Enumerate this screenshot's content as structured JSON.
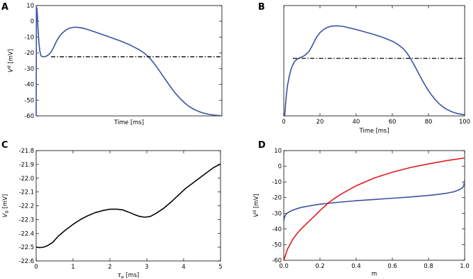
{
  "chart_data": [
    {
      "type": "line",
      "panel_label": "A",
      "xlabel": "Time [ms]",
      "ylabel": "V",
      "ylabel_sup": "d",
      "ylabel_unit": " [mV]",
      "xlim": [
        0,
        100
      ],
      "ylim": [
        -60,
        10
      ],
      "xticks": [],
      "xticklabels": [],
      "yticks": [
        10,
        0,
        -10,
        -20,
        -30,
        -40,
        -50,
        -60
      ],
      "yticklabels": [
        "10",
        "0",
        "-10",
        "-20",
        "-30",
        "-40",
        "-50",
        "-60"
      ],
      "series": [
        {
          "name": "Vd",
          "color": "#3a4fa0",
          "x": [
            0,
            0.15,
            0.4,
            0.7,
            1.0,
            1.5,
            2.0,
            2.5,
            3.0,
            4.0,
            5.0,
            6.0,
            7.0,
            8.0,
            9.0,
            10.0,
            11.0,
            12.0,
            13.0,
            14.0,
            16.0,
            18.0,
            20.0,
            22.0,
            24.0,
            26.0,
            28.0,
            30.0,
            32.0,
            35.0,
            40.0,
            45.0,
            50.0,
            55.0,
            58.0,
            60.0,
            62.0,
            64.0,
            66.0,
            68.0,
            70.0,
            72.0,
            74.0,
            76.0,
            78.0,
            80.0,
            82.0,
            84.0,
            86.0,
            88.0,
            90.0,
            93.0,
            96.0,
            100.0
          ],
          "y": [
            -60,
            9,
            8,
            3,
            -5,
            -14,
            -19,
            -21.5,
            -22.3,
            -22.5,
            -22.3,
            -21.8,
            -20.8,
            -19.5,
            -17.5,
            -15.0,
            -12.5,
            -10.5,
            -8.8,
            -7.5,
            -5.5,
            -4.3,
            -3.8,
            -3.8,
            -4.1,
            -4.6,
            -5.3,
            -6.1,
            -6.9,
            -8.1,
            -10.2,
            -12.3,
            -14.7,
            -17.7,
            -20.0,
            -22.0,
            -24.5,
            -27.5,
            -30.8,
            -34.2,
            -37.6,
            -41.0,
            -44.2,
            -47.0,
            -49.6,
            -51.8,
            -53.7,
            -55.2,
            -56.4,
            -57.4,
            -58.2,
            -59.0,
            -59.5,
            -59.9
          ]
        },
        {
          "name": "V0 threshold",
          "color": "#000000",
          "style": "dash-dot",
          "x": [
            8,
            100
          ],
          "y": [
            -22.5,
            -22.5
          ]
        }
      ]
    },
    {
      "type": "line",
      "panel_label": "B",
      "xlabel": "Time [ms]",
      "ylabel": "",
      "xlim": [
        0,
        100
      ],
      "ylim": [
        -60,
        10
      ],
      "xticks": [
        0,
        20,
        40,
        60,
        80,
        100
      ],
      "xticklabels": [
        "0",
        "20",
        "40",
        "60",
        "80",
        "100"
      ],
      "yticks": [],
      "yticklabels": [],
      "series": [
        {
          "name": "Vd",
          "color": "#3a4fa0",
          "x": [
            0.5,
            1.0,
            1.5,
            2.0,
            3.0,
            4.0,
            5.0,
            6.0,
            7.0,
            8.0,
            9.0,
            10.0,
            11.0,
            12.0,
            13.0,
            14.0,
            15.0,
            16.0,
            17.0,
            18.0,
            20.0,
            22.0,
            24.0,
            26.0,
            28.0,
            30.0,
            32.0,
            35.0,
            40.0,
            45.0,
            50.0,
            55.0,
            60.0,
            63.0,
            66.0,
            68.0,
            70.0,
            72.0,
            74.0,
            76.0,
            78.0,
            80.0,
            82.0,
            84.0,
            86.0,
            88.0,
            90.0,
            93.0,
            96.0,
            100.0
          ],
          "y": [
            -60,
            -52,
            -46,
            -41,
            -35,
            -30.5,
            -27.5,
            -25.5,
            -24.3,
            -23.6,
            -23.0,
            -22.6,
            -22.0,
            -21.2,
            -20.2,
            -19.0,
            -17.0,
            -14.8,
            -12.5,
            -10.2,
            -7.2,
            -5.2,
            -3.9,
            -3.2,
            -2.9,
            -2.9,
            -3.1,
            -3.8,
            -5.2,
            -6.8,
            -8.4,
            -10.3,
            -12.6,
            -14.6,
            -17.3,
            -20.0,
            -23.5,
            -27.5,
            -31.8,
            -36.2,
            -40.3,
            -44.0,
            -47.2,
            -50.0,
            -52.4,
            -54.3,
            -55.8,
            -57.4,
            -58.5,
            -59.3
          ]
        },
        {
          "name": "V0 threshold",
          "color": "#000000",
          "style": "dash-dot",
          "x": [
            5,
            100
          ],
          "y": [
            -23.5,
            -23.5
          ]
        }
      ]
    },
    {
      "type": "line",
      "panel_label": "C",
      "xlabel": "τ",
      "xlabel_sub": "e",
      "xlabel_unit": " [ms]",
      "ylabel": "V",
      "ylabel_sub": "0",
      "ylabel_unit": " [mV]",
      "xlim": [
        0,
        5
      ],
      "ylim": [
        -22.6,
        -21.8
      ],
      "xticks": [
        0,
        1,
        2,
        3,
        4,
        5
      ],
      "xticklabels": [
        "0",
        "1",
        "2",
        "3",
        "4",
        "5"
      ],
      "yticks": [
        -21.8,
        -21.9,
        -22.0,
        -22.1,
        -22.2,
        -22.3,
        -22.4,
        -22.5,
        -22.6
      ],
      "yticklabels": [
        "-21.8",
        "-21.9",
        "-22.0",
        "-22.1",
        "-22.2",
        "-22.3",
        "-22.4",
        "-22.5",
        "-22.6"
      ],
      "series": [
        {
          "name": "V0",
          "color": "#000000",
          "x": [
            0,
            0.1,
            0.2,
            0.3,
            0.45,
            0.6,
            0.8,
            1.0,
            1.2,
            1.4,
            1.6,
            1.8,
            2.0,
            2.2,
            2.35,
            2.5,
            2.65,
            2.8,
            2.95,
            3.1,
            3.25,
            3.45,
            3.65,
            3.85,
            4.05,
            4.3,
            4.55,
            4.8,
            5.0
          ],
          "y": [
            -22.5,
            -22.503,
            -22.5,
            -22.49,
            -22.465,
            -22.42,
            -22.375,
            -22.335,
            -22.3,
            -22.272,
            -22.25,
            -22.235,
            -22.225,
            -22.225,
            -22.23,
            -22.245,
            -22.262,
            -22.277,
            -22.283,
            -22.277,
            -22.255,
            -22.22,
            -22.175,
            -22.125,
            -22.075,
            -22.025,
            -21.975,
            -21.925,
            -21.897
          ]
        }
      ]
    },
    {
      "type": "line",
      "panel_label": "D",
      "xlabel": "m",
      "ylabel": "V",
      "ylabel_sup": "d",
      "ylabel_unit": " [mV]",
      "xlim": [
        0,
        1
      ],
      "ylim": [
        -60,
        10
      ],
      "xticks": [
        0,
        0.2,
        0.4,
        0.6,
        0.8,
        1.0
      ],
      "xticklabels": [
        "0.0",
        "0.2",
        "0.4",
        "0.6",
        "0.8",
        "1.0"
      ],
      "yticks": [
        10,
        0,
        -10,
        -20,
        -30,
        -40,
        -50,
        -60
      ],
      "yticklabels": [
        "10",
        "0",
        "-10",
        "-20",
        "-30",
        "-40",
        "-50",
        "-60"
      ],
      "series": [
        {
          "name": "blue nullcline",
          "color": "#3a4fa0",
          "x": [
            0.0,
            0.002,
            0.005,
            0.01,
            0.02,
            0.035,
            0.05,
            0.08,
            0.1,
            0.15,
            0.2,
            0.3,
            0.4,
            0.5,
            0.6,
            0.7,
            0.8,
            0.85,
            0.9,
            0.94,
            0.97,
            0.985,
            0.995,
            1.0
          ],
          "y": [
            -35,
            -33.5,
            -32.2,
            -31.0,
            -29.8,
            -28.8,
            -28.0,
            -26.8,
            -26.2,
            -25.1,
            -24.2,
            -23.0,
            -22.0,
            -21.2,
            -20.4,
            -19.6,
            -18.6,
            -18.0,
            -17.2,
            -16.3,
            -15.0,
            -14.0,
            -12.5,
            -9.0
          ]
        },
        {
          "name": "red nullcline",
          "color": "#e0171c",
          "x": [
            0.0,
            0.02,
            0.05,
            0.08,
            0.1,
            0.15,
            0.2,
            0.25,
            0.3,
            0.35,
            0.4,
            0.5,
            0.6,
            0.7,
            0.8,
            0.9,
            1.0
          ],
          "y": [
            -60,
            -53.0,
            -46.5,
            -42.0,
            -39.5,
            -34.0,
            -28.3,
            -23.0,
            -19.0,
            -15.6,
            -12.5,
            -7.5,
            -3.8,
            -0.8,
            1.5,
            3.6,
            5.3
          ]
        }
      ]
    }
  ]
}
